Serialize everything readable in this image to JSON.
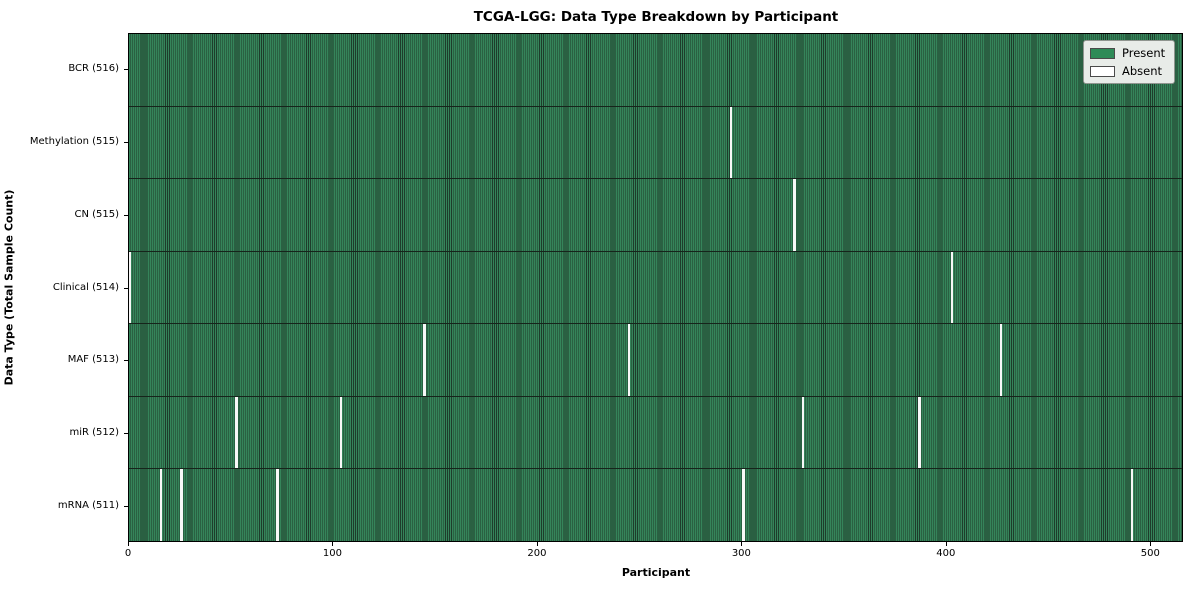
{
  "chart_data": {
    "type": "heatmap",
    "title": "TCGA-LGG: Data Type Breakdown by Participant",
    "xlabel": "Participant",
    "ylabel": "Data Type (Total Sample Count)",
    "x_range": [
      0,
      516
    ],
    "x_ticks": [
      0,
      100,
      200,
      300,
      400,
      500
    ],
    "total_participants": 516,
    "grid": false,
    "legend_position": "upper right",
    "colors": {
      "present_fill": "#35845a",
      "present_edge": "#1e3c2b",
      "absent_fill": "#f8f8f8",
      "row_divider": "#16241b",
      "legend_face": "#e8ece8",
      "legend_present_swatch": "#2e8b57",
      "legend_absent_swatch": "#ffffff"
    },
    "legend": [
      {
        "label": "Present",
        "color": "#2e8b57"
      },
      {
        "label": "Absent",
        "color": "#ffffff"
      }
    ],
    "rows": [
      {
        "label": "BCR (516)",
        "data_type": "BCR",
        "sample_count": 516,
        "absent_participants": []
      },
      {
        "label": "Methylation (515)",
        "data_type": "Methylation",
        "sample_count": 515,
        "absent_participants": [
          294
        ]
      },
      {
        "label": "CN (515)",
        "data_type": "CN",
        "sample_count": 515,
        "absent_participants": [
          325
        ]
      },
      {
        "label": "Clinical (514)",
        "data_type": "Clinical",
        "sample_count": 514,
        "absent_participants": [
          0,
          402
        ]
      },
      {
        "label": "MAF (513)",
        "data_type": "MAF",
        "sample_count": 513,
        "absent_participants": [
          144,
          244,
          426
        ]
      },
      {
        "label": "miR (512)",
        "data_type": "miR",
        "sample_count": 512,
        "absent_participants": [
          52,
          103,
          329,
          386
        ]
      },
      {
        "label": "mRNA (511)",
        "data_type": "mRNA",
        "sample_count": 511,
        "absent_participants": [
          15,
          25,
          72,
          300,
          490
        ]
      }
    ]
  }
}
